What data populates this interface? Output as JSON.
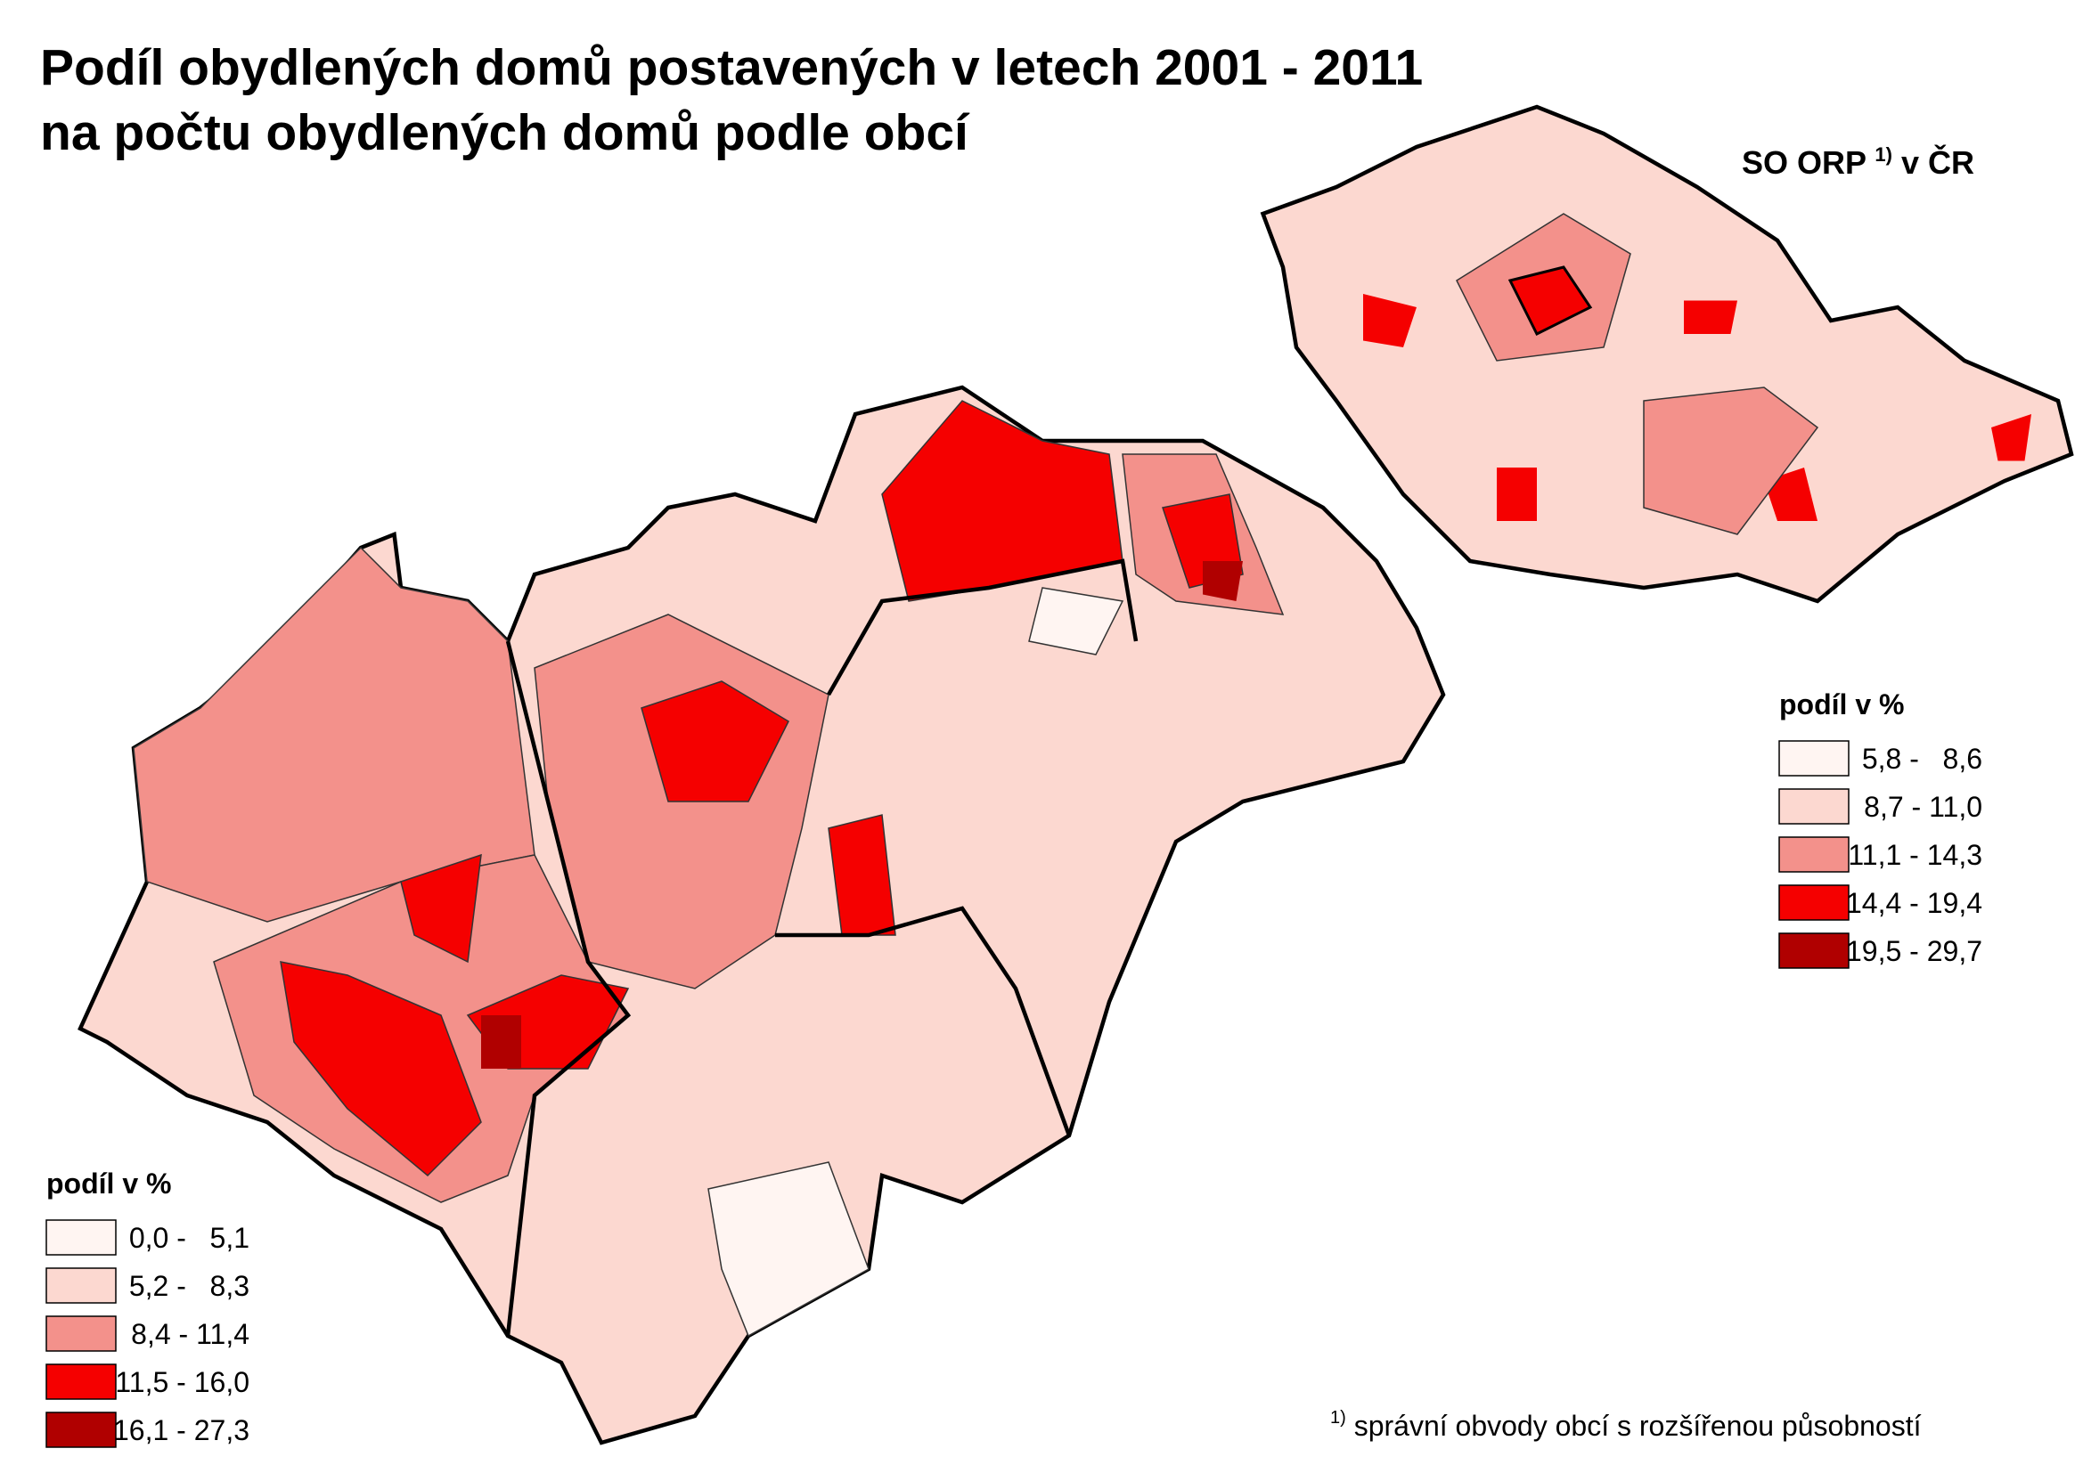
{
  "header": {
    "title_line1": "Podíl obydlených domů postavených v letech 2001 - 2011",
    "title_line2": "na počtu obydlených domů podle obcí"
  },
  "inset": {
    "label": "SO ORP",
    "superscript": "1)",
    "label_suffix": "v ČR"
  },
  "legend_main": {
    "title": "podíl v %",
    "items": [
      {
        "label": "0,0 -   5,1",
        "color": "#fff5f2"
      },
      {
        "label": "5,2 -   8,3",
        "color": "#fcd8d0"
      },
      {
        "label": "8,4 - 11,4",
        "color": "#f3918b"
      },
      {
        "label": "11,5 - 16,0",
        "color": "#f50000"
      },
      {
        "label": "16,1 - 27,3",
        "color": "#b00000"
      }
    ]
  },
  "legend_inset": {
    "title": "podíl v %",
    "items": [
      {
        "label": "5,8 -   8,6",
        "color": "#fff5f2"
      },
      {
        "label": "8,7 - 11,0",
        "color": "#fcd8d0"
      },
      {
        "label": "11,1 - 14,3",
        "color": "#f3918b"
      },
      {
        "label": "14,4 - 19,4",
        "color": "#f50000"
      },
      {
        "label": "19,5 - 29,7",
        "color": "#b00000"
      }
    ]
  },
  "footnote": {
    "marker": "1)",
    "text": "správní obvody obcí s rozšířenou působností"
  }
}
